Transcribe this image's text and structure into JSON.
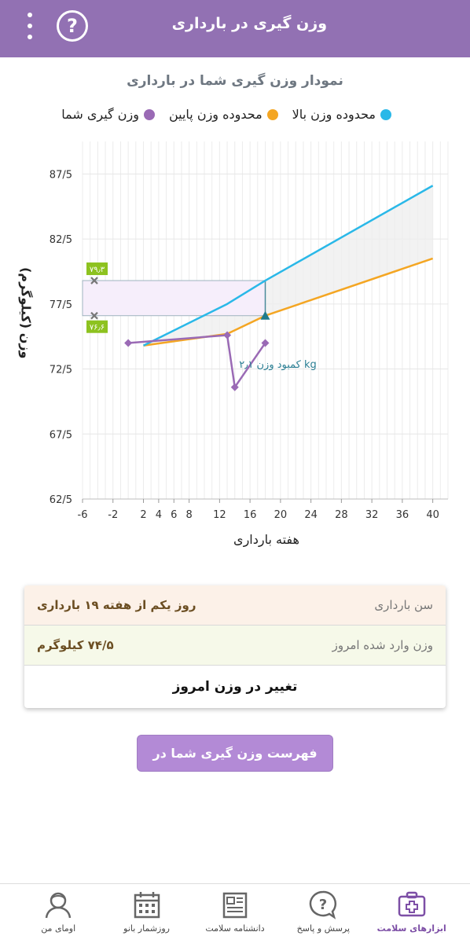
{
  "appbar": {
    "title": "وزن گیری در بارداری",
    "help_glyph": "?"
  },
  "chart_title": "نمودار وزن گیری شما در بارداری",
  "legend": [
    {
      "label": "محدوده وزن بالا",
      "color": "#2ab8e8"
    },
    {
      "label": "محدوده وزن پایین",
      "color": "#f4a623"
    },
    {
      "label": "وزن گیری شما",
      "color": "#9a6ab5"
    }
  ],
  "chart_data": {
    "type": "line",
    "xlabel": "هفته بارداری",
    "ylabel": "وزن (کیلوگرم)",
    "x_ticks": [
      "-6",
      "-2",
      "2",
      "4",
      "6",
      "8",
      "12",
      "16",
      "20",
      "24",
      "28",
      "32",
      "36",
      "40"
    ],
    "y_ticks": [
      "87/5",
      "82/5",
      "77/5",
      "72/5",
      "67/5",
      "62/5"
    ],
    "xlim": [
      -6,
      42
    ],
    "ylim": [
      62.5,
      90
    ],
    "grid": true,
    "series": [
      {
        "name": "محدوده وزن بالا",
        "color": "#2ab8e8",
        "x": [
          2,
          13,
          18,
          40
        ],
        "y": [
          74.3,
          77.5,
          79.3,
          86.6
        ]
      },
      {
        "name": "محدوده وزن پایین",
        "color": "#f4a623",
        "x": [
          2,
          13,
          18,
          40
        ],
        "y": [
          74.3,
          75.2,
          76.6,
          81.0
        ]
      },
      {
        "name": "وزن گیری شما",
        "color": "#9a6ab5",
        "x": [
          0,
          13,
          14,
          18
        ],
        "y": [
          74.5,
          75.1,
          71.1,
          74.5
        ]
      }
    ],
    "range_markers": {
      "upper": "۷۹٫۳",
      "lower": "۷۶٫۶",
      "upper_value": 79.3,
      "lower_value": 76.6,
      "week": 18
    },
    "annotation": "کمبود وزن ۲٫۱ kg"
  },
  "info_card": {
    "age_label": "سن بارداری",
    "age_value": "روز یکم از هفته ۱۹ بارداری",
    "weight_label": "وزن وارد شده امروز",
    "weight_value": "۷۴/۵ کیلوگرم",
    "change_button": "تغییر در وزن امروز"
  },
  "list_button": "فهرست وزن گیری شما در بارداری",
  "bottom_nav": [
    {
      "label": "ابزارهای سلامت",
      "icon": "medical-kit-icon",
      "active": true
    },
    {
      "label": "پرسش و پاسخ",
      "icon": "question-bubble-icon",
      "active": false
    },
    {
      "label": "دانشنامه سلامت",
      "icon": "encyclopedia-icon",
      "active": false
    },
    {
      "label": "روزشمار بانو",
      "icon": "calendar-icon",
      "active": false
    },
    {
      "label": "اومای من",
      "icon": "profile-icon",
      "active": false
    }
  ]
}
